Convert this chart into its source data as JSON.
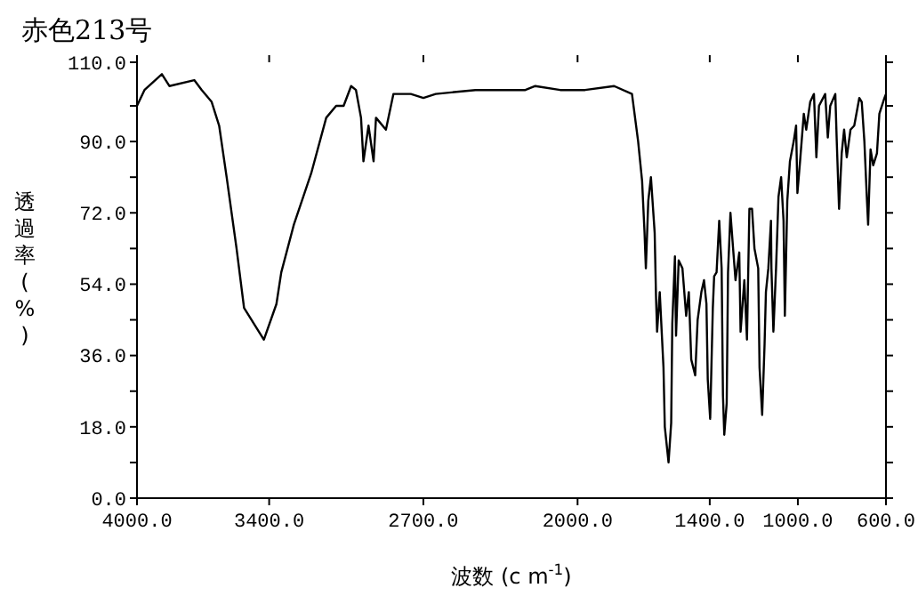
{
  "chart_data": {
    "type": "line",
    "title": "赤色213号",
    "xlabel": "波数 (c m$^{-1}$)",
    "ylabel": "透過率(%)",
    "x": [
      4000,
      3966,
      3887,
      3853,
      3740,
      3706,
      3661,
      3627,
      3593,
      3548,
      3514,
      3424,
      3367,
      3345,
      3288,
      3209,
      3141,
      3096,
      3062,
      3028,
      3006,
      2983,
      2972,
      2949,
      2926,
      2915,
      2870,
      2836,
      2757,
      2700,
      2644,
      2463,
      2237,
      2192,
      2079,
      1966,
      1834,
      1753,
      1725,
      1707,
      1696,
      1690,
      1679,
      1667,
      1650,
      1644,
      1639,
      1627,
      1610,
      1604,
      1587,
      1575,
      1570,
      1558,
      1553,
      1541,
      1524,
      1507,
      1495,
      1484,
      1466,
      1455,
      1438,
      1426,
      1415,
      1409,
      1398,
      1386,
      1380,
      1369,
      1357,
      1346,
      1340,
      1334,
      1323,
      1317,
      1306,
      1294,
      1283,
      1266,
      1260,
      1243,
      1231,
      1220,
      1208,
      1197,
      1180,
      1174,
      1162,
      1151,
      1145,
      1134,
      1122,
      1120,
      1111,
      1099,
      1088,
      1076,
      1065,
      1059,
      1048,
      1036,
      1019,
      1008,
      1002,
      990,
      973,
      962,
      944,
      927,
      916,
      904,
      876,
      864,
      853,
      830,
      824,
      813,
      801,
      790,
      778,
      761,
      744,
      721,
      710,
      698,
      687,
      681,
      670,
      658,
      641,
      630,
      607,
      600
    ],
    "series": [
      {
        "color": "#000000",
        "values": [
          99,
          103,
          107,
          104,
          105.5,
          103,
          100,
          94,
          81,
          63,
          48,
          40,
          49,
          57,
          69,
          82,
          96,
          99,
          99,
          104,
          103,
          96,
          85,
          94,
          85,
          96,
          93,
          102,
          102,
          101,
          102,
          103,
          103,
          104,
          103,
          103,
          104,
          102,
          90,
          80,
          67,
          58,
          75,
          81,
          67,
          51,
          42,
          52,
          33,
          18,
          9,
          19,
          44,
          61,
          41,
          60,
          58,
          46,
          52,
          35,
          31,
          45,
          52,
          55,
          49,
          30,
          20,
          48,
          56,
          57,
          70,
          58,
          26,
          16,
          24,
          57,
          72,
          63,
          55,
          62,
          42,
          55,
          40,
          73,
          73,
          63,
          58,
          33,
          21,
          39,
          52,
          58,
          70,
          58,
          42,
          58,
          76,
          81,
          70,
          46,
          75,
          85,
          90,
          94,
          77,
          85,
          97,
          93,
          100,
          102,
          86,
          99,
          102,
          91,
          99,
          102,
          91,
          73,
          87,
          93,
          86,
          93,
          94,
          101,
          100,
          90,
          76,
          69,
          88,
          84,
          87,
          97,
          101,
          102
        ]
      }
    ],
    "xlim": [
      4000,
      600
    ],
    "xticks": [
      {
        "value": 4000,
        "label": "4000.0"
      },
      {
        "value": 3400,
        "label": "3400.0"
      },
      {
        "value": 2700,
        "label": "2700.0"
      },
      {
        "value": 2000,
        "label": "2000.0"
      },
      {
        "value": 1400,
        "label": "1400.0"
      },
      {
        "value": 1000,
        "label": "1000.0"
      },
      {
        "value": 600,
        "label": "600.0"
      }
    ],
    "ylim": [
      0,
      110
    ],
    "yticks": [
      {
        "value": 0,
        "label": "0.0"
      },
      {
        "value": 9,
        "label": null
      },
      {
        "value": 18,
        "label": "18.0"
      },
      {
        "value": 27,
        "label": null
      },
      {
        "value": 36,
        "label": "36.0"
      },
      {
        "value": 45,
        "label": null
      },
      {
        "value": 54,
        "label": "54.0"
      },
      {
        "value": 63,
        "label": null
      },
      {
        "value": 72,
        "label": "72.0"
      },
      {
        "value": 81,
        "label": null
      },
      {
        "value": 90,
        "label": "90.0"
      },
      {
        "value": 99,
        "label": null
      },
      {
        "value": 110,
        "label": "110.0"
      }
    ],
    "grid": false,
    "marker": "none",
    "line_style": "solid"
  }
}
